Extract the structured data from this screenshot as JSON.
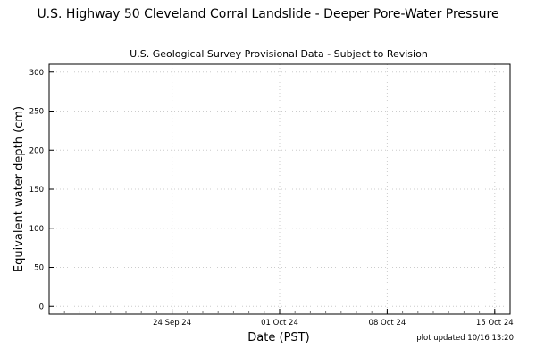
{
  "chart_data": {
    "type": "line",
    "title": "U.S. Highway 50 Cleveland Corral Landslide - Deeper Pore-Water Pressure",
    "subtitle": "U.S. Geological Survey Provisional Data - Subject to Revision",
    "xlabel": "Date (PST)",
    "ylabel": "Equivalent water depth (cm)",
    "footnote": "plot updated 10/16 13:20",
    "x_axis": {
      "type": "date",
      "range": [
        "2024-09-16",
        "2024-10-16"
      ],
      "ticks": [
        {
          "value": "2024-09-24",
          "label": "24 Sep 24"
        },
        {
          "value": "2024-10-01",
          "label": "01 Oct 24"
        },
        {
          "value": "2024-10-08",
          "label": "08 Oct 24"
        },
        {
          "value": "2024-10-15",
          "label": "15 Oct 24"
        }
      ]
    },
    "y_axis": {
      "range": [
        -10,
        310
      ],
      "ticks": [
        0,
        50,
        100,
        150,
        200,
        250,
        300
      ]
    },
    "grid": true,
    "series": []
  }
}
